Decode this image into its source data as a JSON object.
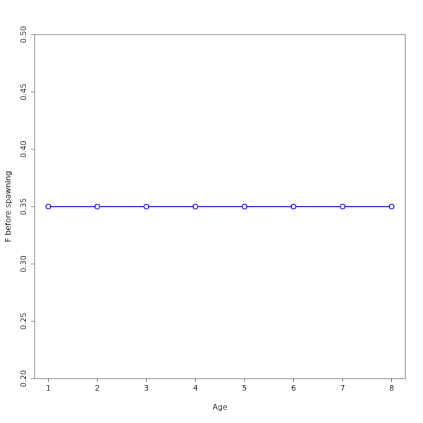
{
  "chart_data": {
    "type": "line",
    "xlabel": "Age",
    "ylabel": "F before spawning",
    "x": [
      1,
      2,
      3,
      4,
      5,
      6,
      7,
      8
    ],
    "series": [
      {
        "name": "F before spawning",
        "values": [
          0.35,
          0.35,
          0.35,
          0.35,
          0.35,
          0.35,
          0.35,
          0.35
        ],
        "color": "#1717e6",
        "marker": "open-circle",
        "marker_fill": "#ffffff"
      }
    ],
    "xlim": [
      1,
      8
    ],
    "ylim": [
      0.2,
      0.5
    ],
    "xticks": [
      1,
      2,
      3,
      4,
      5,
      6,
      7,
      8
    ],
    "xtick_labels": [
      "1",
      "2",
      "3",
      "4",
      "5",
      "6",
      "7",
      "8"
    ],
    "yticks": [
      0.2,
      0.25,
      0.3,
      0.35,
      0.4,
      0.45,
      0.5
    ],
    "ytick_labels": [
      "0.20",
      "0.25",
      "0.30",
      "0.35",
      "0.40",
      "0.45",
      "0.50"
    ],
    "grid": false,
    "legend": null,
    "frame_box": true,
    "axis_color": "#666666",
    "text_color": "#1a1a1a"
  }
}
